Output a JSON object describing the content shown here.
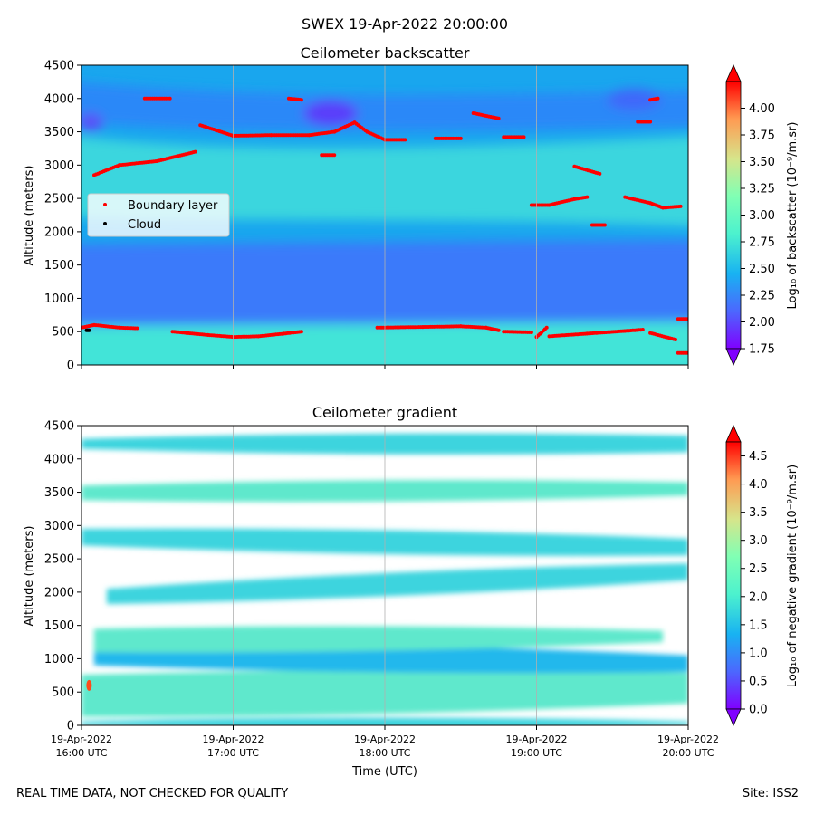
{
  "figure": {
    "suptitle": "SWEX 19-Apr-2022 20:00:00",
    "footer_left": "REAL TIME DATA, NOT CHECKED FOR QUALITY",
    "footer_right": "Site: ISS2"
  },
  "time_ticks": [
    {
      "date": "19-Apr-2022",
      "time": "16:00 UTC"
    },
    {
      "date": "19-Apr-2022",
      "time": "17:00 UTC"
    },
    {
      "date": "19-Apr-2022",
      "time": "18:00 UTC"
    },
    {
      "date": "19-Apr-2022",
      "time": "19:00 UTC"
    },
    {
      "date": "19-Apr-2022",
      "time": "20:00 UTC"
    }
  ],
  "chart_data": [
    {
      "type": "heatmap",
      "title": "Ceilometer backscatter",
      "xlabel": "",
      "ylabel": "Altitude (meters)",
      "xlim": [
        "16:00",
        "20:00"
      ],
      "ylim": [
        0,
        4500
      ],
      "yticks": [
        0,
        500,
        1000,
        1500,
        2000,
        2500,
        3000,
        3500,
        4000,
        4500
      ],
      "grid": "vertical",
      "colorbar": {
        "label": "Log₁₀ of backscatter (10⁻⁹/m.sr)",
        "colormap": "rainbow",
        "range": [
          1.75,
          4.25
        ],
        "ticks": [
          "1.75",
          "2.00",
          "2.25",
          "2.50",
          "2.75",
          "3.00",
          "3.25",
          "3.50",
          "3.75",
          "4.00"
        ],
        "extend": "both"
      },
      "legend": {
        "placement": "center-left",
        "entries": [
          {
            "label": "Boundary layer",
            "color": "#ff0000"
          },
          {
            "label": "Cloud",
            "color": "#000000"
          }
        ]
      },
      "series": [
        {
          "name": "Boundary layer",
          "marker_color": "#ff0000",
          "segments": [
            [
              [
                "16:00",
                560
              ],
              [
                "16:05",
                600
              ],
              [
                "16:15",
                560
              ],
              [
                "16:22",
                550
              ]
            ],
            [
              [
                "16:36",
                500
              ],
              [
                "16:50",
                450
              ],
              [
                "17:00",
                420
              ],
              [
                "17:10",
                430
              ],
              [
                "17:20",
                470
              ],
              [
                "17:27",
                500
              ]
            ],
            [
              [
                "17:57",
                560
              ],
              [
                "18:15",
                570
              ],
              [
                "18:30",
                580
              ],
              [
                "18:40",
                560
              ],
              [
                "18:45",
                520
              ]
            ],
            [
              [
                "18:47",
                500
              ],
              [
                "18:58",
                490
              ]
            ],
            [
              [
                "19:00",
                420
              ],
              [
                "19:04",
                560
              ]
            ],
            [
              [
                "19:05",
                430
              ],
              [
                "19:20",
                470
              ],
              [
                "19:35",
                510
              ],
              [
                "19:42",
                530
              ]
            ],
            [
              [
                "19:45",
                480
              ],
              [
                "19:55",
                380
              ]
            ],
            [
              [
                "19:56",
                690
              ],
              [
                "20:00",
                690
              ]
            ],
            [
              [
                "19:56",
                180
              ],
              [
                "20:00",
                180
              ]
            ],
            [
              [
                "16:05",
                2850
              ],
              [
                "16:15",
                3000
              ],
              [
                "16:30",
                3060
              ],
              [
                "16:45",
                3200
              ]
            ],
            [
              [
                "16:47",
                3600
              ],
              [
                "17:00",
                3440
              ],
              [
                "17:15",
                3450
              ],
              [
                "17:30",
                3450
              ],
              [
                "17:40",
                3500
              ],
              [
                "17:48",
                3640
              ],
              [
                "17:53",
                3500
              ],
              [
                "18:00",
                3380
              ],
              [
                "18:08",
                3380
              ]
            ],
            [
              [
                "18:20",
                3400
              ],
              [
                "18:30",
                3400
              ]
            ],
            [
              [
                "18:35",
                3780
              ],
              [
                "18:45",
                3700
              ]
            ],
            [
              [
                "18:47",
                3420
              ],
              [
                "18:55",
                3420
              ]
            ],
            [
              [
                "18:58",
                2400
              ],
              [
                "19:05",
                2400
              ],
              [
                "19:15",
                2490
              ],
              [
                "19:20",
                2520
              ]
            ],
            [
              [
                "19:15",
                2980
              ],
              [
                "19:25",
                2870
              ]
            ],
            [
              [
                "19:35",
                2520
              ],
              [
                "19:45",
                2430
              ],
              [
                "19:50",
                2360
              ],
              [
                "19:57",
                2380
              ]
            ],
            [
              [
                "19:40",
                3650
              ],
              [
                "19:45",
                3650
              ]
            ],
            [
              [
                "19:45",
                3980
              ],
              [
                "19:48",
                4000
              ]
            ],
            [
              [
                "16:25",
                4000
              ],
              [
                "16:35",
                4000
              ]
            ],
            [
              [
                "17:22",
                4000
              ],
              [
                "17:27",
                3980
              ]
            ],
            [
              [
                "17:35",
                3150
              ],
              [
                "17:40",
                3150
              ]
            ],
            [
              [
                "19:22",
                2100
              ],
              [
                "19:27",
                2100
              ]
            ]
          ]
        },
        {
          "name": "Cloud",
          "marker_color": "#000000",
          "segments": [
            [
              [
                "16:02",
                520
              ],
              [
                "16:03",
                520
              ]
            ]
          ]
        }
      ]
    },
    {
      "type": "heatmap",
      "title": "Ceilometer gradient",
      "xlabel": "Time (UTC)",
      "ylabel": "Altitude (meters)",
      "xlim": [
        "16:00",
        "20:00"
      ],
      "ylim": [
        0,
        4500
      ],
      "yticks": [
        0,
        500,
        1000,
        1500,
        2000,
        2500,
        3000,
        3500,
        4000,
        4500
      ],
      "grid": "vertical",
      "colorbar": {
        "label": "Log₁₀ of negative gradient (10⁻⁹/m.sr)",
        "colormap": "rainbow",
        "range": [
          0.0,
          4.75
        ],
        "ticks": [
          "0.0",
          "0.5",
          "1.0",
          "1.5",
          "2.0",
          "2.5",
          "3.0",
          "3.5",
          "4.0",
          "4.5"
        ],
        "extend": "both"
      },
      "bands": [
        {
          "from": "16:00",
          "to": "20:00",
          "y": [
            [
              0,
              60
            ],
            [
              0,
              60
            ]
          ],
          "value": 1.6
        },
        {
          "from": "16:00",
          "to": "20:00",
          "y": [
            [
              130,
              760
            ],
            [
              330,
              790
            ]
          ],
          "value": 2.0
        },
        {
          "from": "16:05",
          "to": "20:00",
          "y": [
            [
              900,
              1250
            ],
            [
              800,
              1050
            ]
          ],
          "value": 1.3
        },
        {
          "from": "16:05",
          "to": "19:50",
          "y": [
            [
              1100,
              1450
            ],
            [
              1250,
              1420
            ]
          ],
          "value": 1.8
        },
        {
          "from": "16:10",
          "to": "20:00",
          "y": [
            [
              1820,
              2050
            ],
            [
              2180,
              2430
            ]
          ],
          "value": 1.6
        },
        {
          "from": "16:00",
          "to": "20:00",
          "y": [
            [
              2700,
              2950
            ],
            [
              2550,
              2800
            ]
          ],
          "value": 1.7
        },
        {
          "from": "16:00",
          "to": "20:00",
          "y": [
            [
              3380,
              3600
            ],
            [
              3450,
              3650
            ]
          ],
          "value": 1.8
        },
        {
          "from": "16:00",
          "to": "20:00",
          "y": [
            [
              4150,
              4300
            ],
            [
              4100,
              4350
            ]
          ],
          "value": 1.5
        }
      ],
      "hotspot": {
        "time": "16:03",
        "altitude": 600,
        "value": 3.5
      }
    }
  ]
}
